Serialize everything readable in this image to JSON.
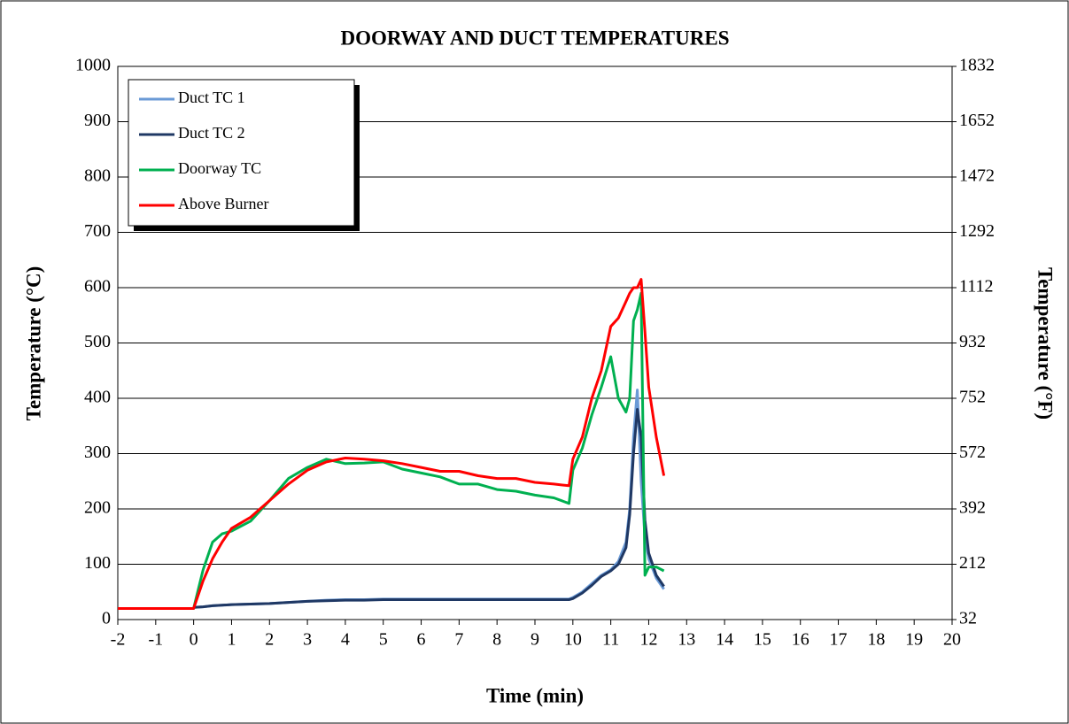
{
  "chart_data": {
    "type": "line",
    "title": "DOORWAY AND DUCT TEMPERATURES",
    "xlabel": "Time (min)",
    "ylabel": "Temperature (°C)",
    "y2label": "Temperature (°F)",
    "x": [
      -2,
      -1,
      0,
      0.25,
      0.5,
      0.75,
      1,
      1.5,
      2,
      2.5,
      3,
      3.5,
      4,
      4.5,
      5,
      5.5,
      6,
      6.5,
      7,
      7.5,
      8,
      8.5,
      9,
      9.5,
      9.9,
      10,
      10.25,
      10.5,
      10.75,
      11,
      11.2,
      11.4,
      11.5,
      11.6,
      11.7,
      11.8,
      11.9,
      12,
      12.2,
      12.4
    ],
    "series": [
      {
        "name": "Duct TC 1",
        "color": "#6a9ad6",
        "values": [
          null,
          null,
          22,
          23,
          25,
          26,
          27,
          28,
          29,
          31,
          33,
          35,
          36,
          36,
          37,
          37,
          37,
          37,
          37,
          37,
          37,
          37,
          37,
          37,
          37,
          40,
          50,
          65,
          80,
          90,
          105,
          140,
          200,
          330,
          415,
          250,
          150,
          110,
          75,
          55
        ]
      },
      {
        "name": "Duct TC 2",
        "color": "#1f3864",
        "values": [
          null,
          null,
          22,
          23,
          25,
          26,
          27,
          28,
          29,
          31,
          33,
          34,
          35,
          35,
          36,
          36,
          36,
          36,
          36,
          36,
          36,
          36,
          36,
          36,
          36,
          38,
          48,
          62,
          78,
          88,
          100,
          130,
          190,
          300,
          380,
          330,
          180,
          120,
          80,
          60
        ]
      },
      {
        "name": "Doorway TC",
        "color": "#00b050",
        "values": [
          20,
          20,
          20,
          90,
          140,
          155,
          160,
          178,
          215,
          255,
          275,
          290,
          282,
          283,
          285,
          272,
          265,
          258,
          245,
          245,
          235,
          232,
          225,
          220,
          210,
          270,
          310,
          370,
          420,
          475,
          400,
          375,
          400,
          540,
          560,
          590,
          80,
          95,
          95,
          88
        ]
      },
      {
        "name": "Above Burner",
        "color": "#ff0000",
        "values": [
          20,
          20,
          20,
          70,
          110,
          140,
          165,
          185,
          215,
          245,
          270,
          285,
          292,
          290,
          287,
          282,
          275,
          268,
          268,
          260,
          255,
          255,
          248,
          245,
          242,
          290,
          330,
          400,
          450,
          530,
          545,
          575,
          590,
          600,
          600,
          615,
          520,
          420,
          330,
          260
        ]
      }
    ],
    "xlim": [
      -2,
      20
    ],
    "xticks": [
      -2,
      -1,
      0,
      1,
      2,
      3,
      4,
      5,
      6,
      7,
      8,
      9,
      10,
      11,
      12,
      13,
      14,
      15,
      16,
      17,
      18,
      19,
      20
    ],
    "ylim": [
      0,
      1000
    ],
    "yticks": [
      0,
      100,
      200,
      300,
      400,
      500,
      600,
      700,
      800,
      900,
      1000
    ],
    "y2lim": [
      32,
      1832
    ],
    "y2ticks": [
      32,
      212,
      392,
      572,
      752,
      932,
      1112,
      1292,
      1472,
      1652,
      1832
    ],
    "grid": true,
    "legend": "upper left"
  }
}
